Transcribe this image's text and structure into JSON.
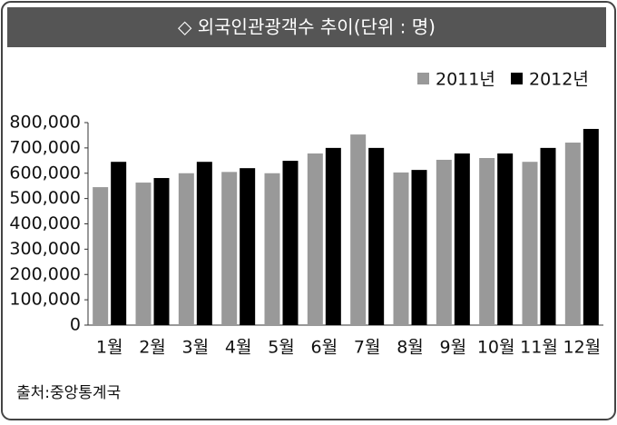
{
  "chart_data": {
    "type": "bar",
    "title": "◇ 외국인관광객수 추이(단위 : 명)",
    "source": "출처:중앙통계국",
    "categories": [
      "1월",
      "2월",
      "3월",
      "4월",
      "5월",
      "6월",
      "7월",
      "8월",
      "9월",
      "10월",
      "11월",
      "12월"
    ],
    "series": [
      {
        "name": "2011년",
        "color": "#999999",
        "values": [
          545000,
          563000,
          600000,
          605000,
          600000,
          678000,
          753000,
          603000,
          653000,
          660000,
          645000,
          721000
        ]
      },
      {
        "name": "2012년",
        "color": "#000000",
        "values": [
          645000,
          581000,
          645000,
          620000,
          649000,
          700000,
          700000,
          613000,
          678000,
          678000,
          700000,
          775000
        ]
      }
    ],
    "ylim": [
      0,
      800000
    ],
    "yticks": [
      0,
      {
        "value": 100000,
        "label": "100,000"
      },
      {
        "value": 200000,
        "label": "200,000"
      },
      {
        "value": 300000,
        "label": "300,000"
      },
      {
        "value": 400000,
        "label": "400,000"
      },
      {
        "value": 500000,
        "label": "500,000"
      },
      {
        "value": 600000,
        "label": "600,000"
      },
      {
        "value": 700000,
        "label": "700,000"
      },
      {
        "value": 800000,
        "label": "800,000"
      }
    ],
    "legend": "top-right"
  }
}
